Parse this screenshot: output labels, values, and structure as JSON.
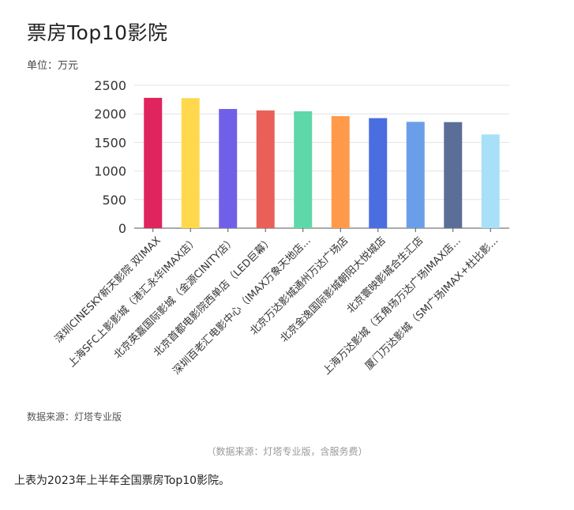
{
  "chart_data": {
    "type": "bar",
    "title": "票房Top10影院",
    "unit_label": "单位：万元",
    "source": "数据来源：灯塔专业版",
    "ylim": [
      0,
      2500
    ],
    "yticks": [
      0,
      500,
      1000,
      1500,
      2000,
      2500
    ],
    "grid": true,
    "legend": "none",
    "categories": [
      "深圳CINESKY新天影院 双IMAX",
      "上海SFC上影影城（港汇永华IMAX店）",
      "北京英嘉国际影城（金源CINITY店）",
      "北京首都电影院西单店（LED巨幕）",
      "深圳百老汇电影中心（IMAX万象天地店...",
      "北京万达影城通州万达广场店",
      "北京金逸国际影城朝阳大悦城店",
      "北京寰映影城合生汇店",
      "上海万达影城（五角场万达广场IMAX店...",
      "厦门万达影城（SM广场IMAX+杜比影..."
    ],
    "values": [
      2280,
      2275,
      2085,
      2060,
      2045,
      1960,
      1925,
      1860,
      1855,
      1640
    ],
    "colors": [
      "#e0245e",
      "#ffd84d",
      "#7060e8",
      "#e86058",
      "#5ed8a8",
      "#ff9a4a",
      "#4a6ee0",
      "#6a9ee8",
      "#5a6e98",
      "#a8e0f8"
    ]
  },
  "caption": "（数据来源：灯塔专业版，含服务费）",
  "description": "上表为2023年上半年全国票房Top10影院。"
}
